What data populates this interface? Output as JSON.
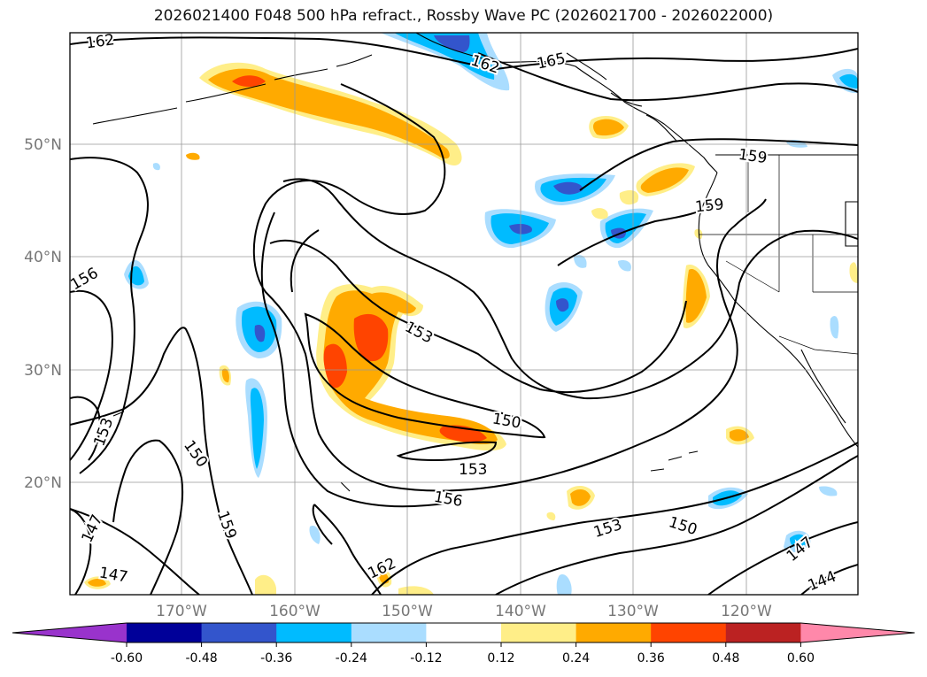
{
  "title": "2026021400 F048 500 hPa refract., Rossby Wave PC (2026021700 - 2026022000)",
  "lat_labels": [
    "50°N",
    "40°N",
    "30°N",
    "20°N"
  ],
  "lon_labels": [
    "170°W",
    "160°W",
    "150°W",
    "140°W",
    "130°W",
    "120°W"
  ],
  "contour_labels": [
    {
      "text": "162",
      "id": "contour-label-162-nw"
    },
    {
      "text": "162",
      "id": "contour-label-162-n"
    },
    {
      "text": "165",
      "id": "contour-label-165"
    },
    {
      "text": "159",
      "id": "contour-label-159-e1"
    },
    {
      "text": "159",
      "id": "contour-label-159-e2"
    },
    {
      "text": "156",
      "id": "contour-label-156-w"
    },
    {
      "text": "153",
      "id": "contour-label-153-c"
    },
    {
      "text": "153",
      "id": "contour-label-153-sw"
    },
    {
      "text": "150",
      "id": "contour-label-150-c"
    },
    {
      "text": "153",
      "id": "contour-label-153-s"
    },
    {
      "text": "150",
      "id": "contour-label-150-sw"
    },
    {
      "text": "156",
      "id": "contour-label-156-s"
    },
    {
      "text": "159",
      "id": "contour-label-159-sw"
    },
    {
      "text": "147",
      "id": "contour-label-147-sw1"
    },
    {
      "text": "147",
      "id": "contour-label-147-sw2"
    },
    {
      "text": "162",
      "id": "contour-label-162-s"
    },
    {
      "text": "153",
      "id": "contour-label-153-se"
    },
    {
      "text": "150",
      "id": "contour-label-150-se"
    },
    {
      "text": "147",
      "id": "contour-label-147-se"
    },
    {
      "text": "144",
      "id": "contour-label-144"
    }
  ],
  "colorbar": {
    "colors": [
      "#9933cc",
      "#000099",
      "#3355cc",
      "#00bbff",
      "#aaddff",
      "#ffffff",
      "#ffee88",
      "#ffaa00",
      "#ff4400",
      "#bb2222",
      "#ff88aa"
    ],
    "ticks": [
      "-0.60",
      "-0.48",
      "-0.36",
      "-0.24",
      "-0.12",
      "0.12",
      "0.24",
      "0.36",
      "0.48",
      "0.60"
    ]
  }
}
